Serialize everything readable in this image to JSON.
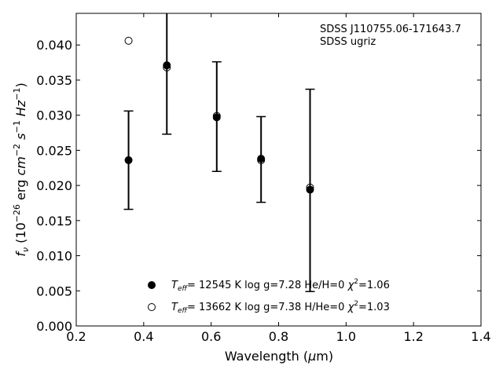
{
  "chart_data": {
    "type": "scatter",
    "xlabel_prefix": "Wavelength (",
    "xlabel_unit_mu": "μ",
    "xlabel_suffix": "m)",
    "ylabel_text": "f_ν (10^-26 erg cm^-2 s^-1 Hz^-1)",
    "xlim": [
      0.2,
      1.4
    ],
    "ylim": [
      0.0,
      0.0445
    ],
    "x_ticks": [
      0.2,
      0.4,
      0.6,
      0.8,
      1.0,
      1.2,
      1.4
    ],
    "x_tick_labels": [
      "0.2",
      "0.4",
      "0.6",
      "0.8",
      "1.0",
      "1.2",
      "1.4"
    ],
    "y_ticks": [
      0.0,
      0.005,
      0.01,
      0.015,
      0.02,
      0.025,
      0.03,
      0.035,
      0.04
    ],
    "y_tick_labels": [
      "0.000",
      "0.005",
      "0.010",
      "0.015",
      "0.020",
      "0.025",
      "0.030",
      "0.035",
      "0.040"
    ],
    "grid": false,
    "annotation": [
      "SDSS J110755.06-171643.7",
      "SDSS ugriz"
    ],
    "observed": {
      "x": [
        0.3551,
        0.4686,
        0.6166,
        0.748,
        0.8932
      ],
      "y": [
        0.0236,
        0.037,
        0.0298,
        0.0237,
        0.0193
      ],
      "yerr": [
        0.007,
        0.0097,
        0.0078,
        0.0061,
        0.0144
      ]
    },
    "series": [
      {
        "name": "T_eff= 12545 K  log g=7.28  He/H=0  χ²=1.06",
        "marker": "filled-circle",
        "x": [
          0.3551,
          0.4686,
          0.6166,
          0.748,
          0.8932
        ],
        "y": [
          0.0236,
          0.0371,
          0.0297,
          0.0238,
          0.0194
        ]
      },
      {
        "name": "T_eff= 13662 K  log g=7.38  H/He=0  χ²=1.03",
        "marker": "open-circle",
        "x": [
          0.3551,
          0.4686,
          0.6166,
          0.748,
          0.8932
        ],
        "y": [
          0.0406,
          0.0368,
          0.0299,
          0.0236,
          0.0197
        ]
      }
    ],
    "legend_placement": "bottom-center",
    "colors": {
      "marker": "#000000",
      "axes": "#000000",
      "background": "#ffffff"
    }
  }
}
